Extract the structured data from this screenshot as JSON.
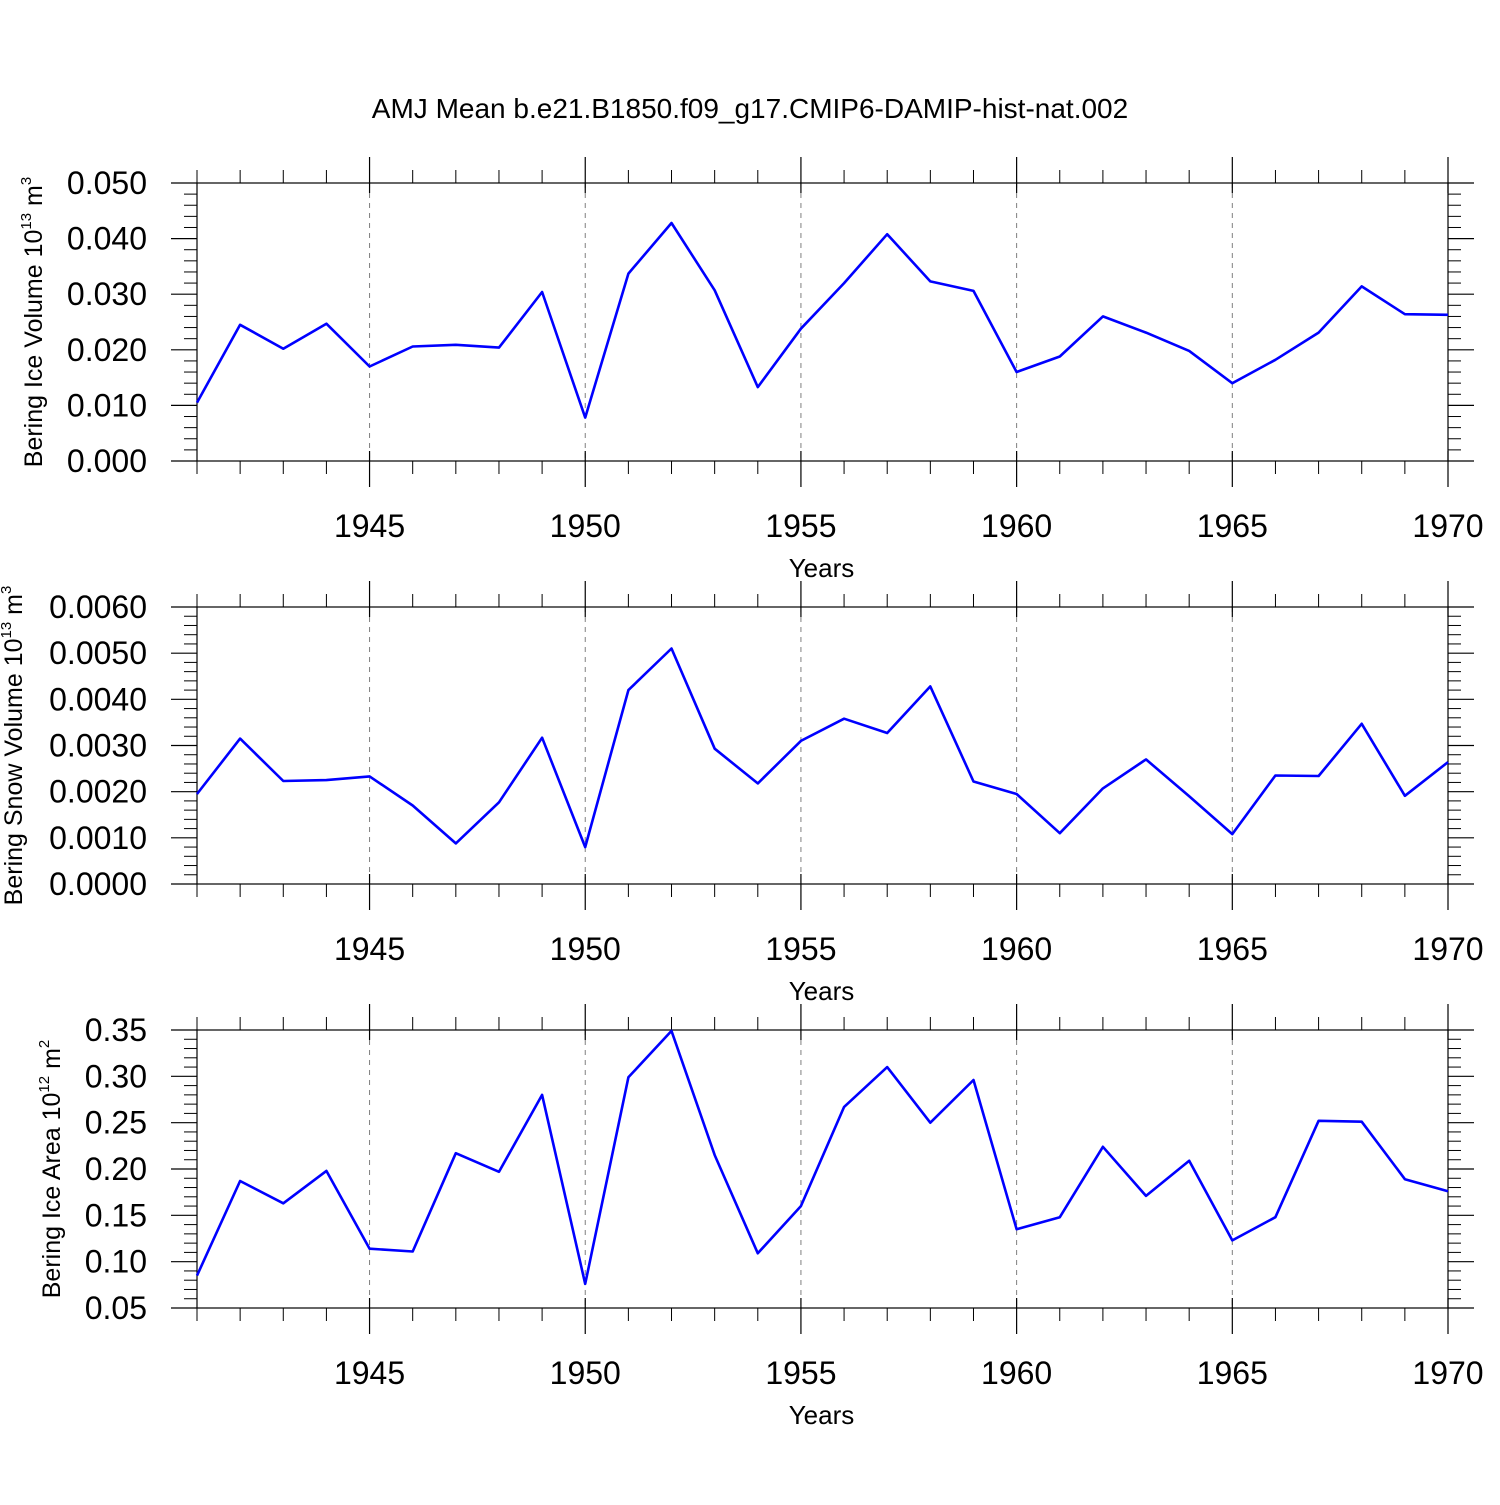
{
  "title": "AMJ Mean b.e21.B1850.f09_g17.CMIP6-DAMIP-hist-nat.002",
  "colors": {
    "series": "#0000ff",
    "axes": "#000000",
    "grid": "#7f7f7f"
  },
  "chart_data": [
    {
      "type": "line",
      "ylabel": {
        "main": "Bering Ice Volume 10",
        "exp": "13",
        "unit": " m",
        "unit_exp": "3"
      },
      "xlabel": "Years",
      "xlim": [
        1941,
        1970
      ],
      "ylim": [
        0.0,
        0.05
      ],
      "yticks": [
        "0.000",
        "0.010",
        "0.020",
        "0.030",
        "0.040",
        "0.050"
      ],
      "xticks": [
        "1945",
        "1950",
        "1955",
        "1960",
        "1965",
        "1970"
      ],
      "grid": "vertical dashed at major x ticks",
      "x": [
        1941,
        1942,
        1943,
        1944,
        1945,
        1946,
        1947,
        1948,
        1949,
        1950,
        1951,
        1952,
        1953,
        1954,
        1955,
        1956,
        1957,
        1958,
        1959,
        1960,
        1961,
        1962,
        1963,
        1964,
        1965,
        1966,
        1967,
        1968,
        1969,
        1970
      ],
      "values": [
        0.0105,
        0.0245,
        0.0202,
        0.0247,
        0.017,
        0.0206,
        0.0209,
        0.0204,
        0.0304,
        0.0078,
        0.0337,
        0.0428,
        0.0307,
        0.0133,
        0.0238,
        0.032,
        0.0408,
        0.0323,
        0.0306,
        0.016,
        0.0188,
        0.026,
        0.0231,
        0.0198,
        0.014,
        0.0182,
        0.0231,
        0.0314,
        0.0264,
        0.0263
      ]
    },
    {
      "type": "line",
      "ylabel": {
        "main": "Bering Snow Volume 10",
        "exp": "13",
        "unit": " m",
        "unit_exp": "3"
      },
      "xlabel": "Years",
      "xlim": [
        1941,
        1970
      ],
      "ylim": [
        0.0,
        0.006
      ],
      "yticks": [
        "0.0000",
        "0.0010",
        "0.0020",
        "0.0030",
        "0.0040",
        "0.0050",
        "0.0060"
      ],
      "xticks": [
        "1945",
        "1950",
        "1955",
        "1960",
        "1965",
        "1970"
      ],
      "grid": "vertical dashed at major x ticks",
      "x": [
        1941,
        1942,
        1943,
        1944,
        1945,
        1946,
        1947,
        1948,
        1949,
        1950,
        1951,
        1952,
        1953,
        1954,
        1955,
        1956,
        1957,
        1958,
        1959,
        1960,
        1961,
        1962,
        1963,
        1964,
        1965,
        1966,
        1967,
        1968,
        1969,
        1970
      ],
      "values": [
        0.00195,
        0.00315,
        0.00223,
        0.00225,
        0.00233,
        0.0017,
        0.00088,
        0.00177,
        0.00317,
        0.0008,
        0.0042,
        0.0051,
        0.00293,
        0.00218,
        0.0031,
        0.00358,
        0.00327,
        0.00428,
        0.00222,
        0.00195,
        0.0011,
        0.00207,
        0.0027,
        0.0019,
        0.00108,
        0.00235,
        0.00234,
        0.00347,
        0.00191,
        0.00264
      ]
    },
    {
      "type": "line",
      "ylabel": {
        "main": "Bering Ice Area 10",
        "exp": "12",
        "unit": " m",
        "unit_exp": "2"
      },
      "xlabel": "Years",
      "xlim": [
        1941,
        1970
      ],
      "ylim": [
        0.05,
        0.35
      ],
      "yticks": [
        "0.05",
        "0.10",
        "0.15",
        "0.20",
        "0.25",
        "0.30",
        "0.35"
      ],
      "xticks": [
        "1945",
        "1950",
        "1955",
        "1960",
        "1965",
        "1970"
      ],
      "grid": "vertical dashed at major x ticks",
      "x": [
        1941,
        1942,
        1943,
        1944,
        1945,
        1946,
        1947,
        1948,
        1949,
        1950,
        1951,
        1952,
        1953,
        1954,
        1955,
        1956,
        1957,
        1958,
        1959,
        1960,
        1961,
        1962,
        1963,
        1964,
        1965,
        1966,
        1967,
        1968,
        1969,
        1970
      ],
      "values": [
        0.085,
        0.187,
        0.163,
        0.198,
        0.114,
        0.111,
        0.217,
        0.197,
        0.28,
        0.076,
        0.299,
        0.349,
        0.215,
        0.109,
        0.16,
        0.267,
        0.31,
        0.25,
        0.296,
        0.135,
        0.148,
        0.224,
        0.171,
        0.209,
        0.123,
        0.148,
        0.252,
        0.251,
        0.189,
        0.176
      ]
    }
  ]
}
